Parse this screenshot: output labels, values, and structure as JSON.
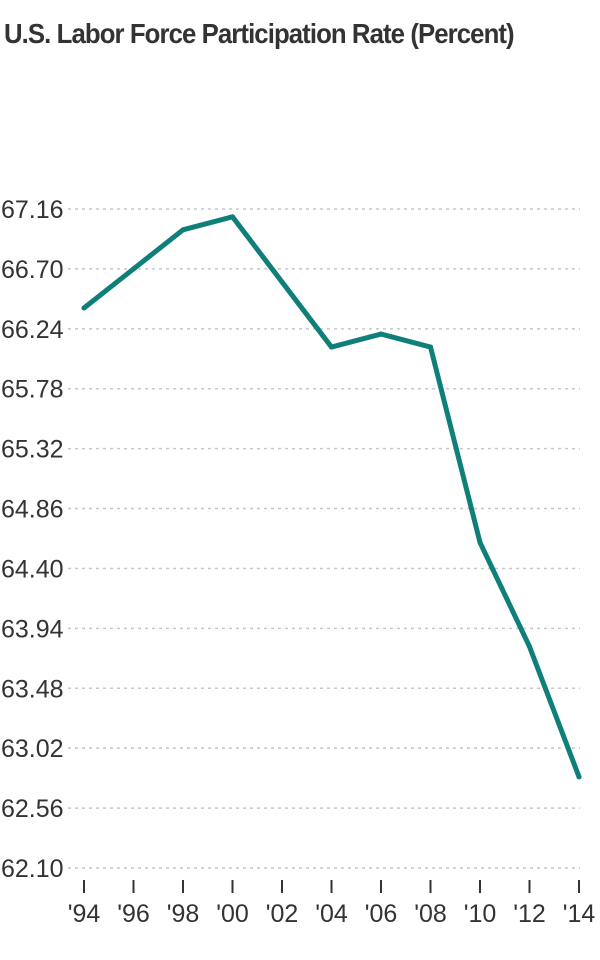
{
  "chart_data": {
    "type": "line",
    "title": "U.S. Labor Force Participation Rate (Percent)",
    "xlabel": "",
    "ylabel": "",
    "categories": [
      "'94",
      "'96",
      "'98",
      "'00",
      "'02",
      "'04",
      "'06",
      "'08",
      "'10",
      "'12",
      "'14"
    ],
    "series": [
      {
        "values": [
          66.4,
          66.7,
          67.0,
          67.1,
          66.6,
          66.1,
          66.2,
          66.1,
          64.6,
          63.8,
          62.8
        ]
      }
    ],
    "yticks": [
      "62.10",
      "62.56",
      "63.02",
      "63.48",
      "63.94",
      "64.40",
      "64.86",
      "65.32",
      "65.78",
      "66.24",
      "66.70",
      "67.16"
    ],
    "ylim": [
      62.1,
      67.16
    ],
    "grid": true,
    "line_color": "#0f7f7a"
  }
}
